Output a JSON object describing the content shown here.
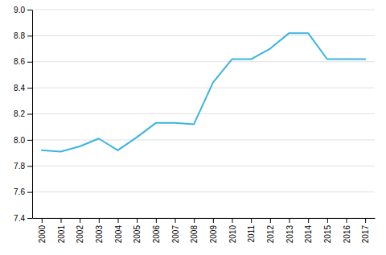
{
  "chart_data": {
    "type": "line",
    "x": [
      2000,
      2001,
      2002,
      2003,
      2004,
      2005,
      2006,
      2007,
      2008,
      2009,
      2010,
      2011,
      2012,
      2013,
      2014,
      2015,
      2016,
      2017
    ],
    "values": [
      7.92,
      7.91,
      7.95,
      8.01,
      7.92,
      8.02,
      8.13,
      8.13,
      8.12,
      8.44,
      8.62,
      8.62,
      8.7,
      8.82,
      8.82,
      8.62,
      8.62,
      8.62
    ],
    "color": "#3ab4e0",
    "xlim": [
      1999.5,
      2017.5
    ],
    "xticks": [
      2000,
      2001,
      2002,
      2003,
      2004,
      2005,
      2006,
      2007,
      2008,
      2009,
      2010,
      2011,
      2012,
      2013,
      2014,
      2015,
      2016,
      2017
    ],
    "ylim": [
      7.4,
      9.0
    ],
    "yticks": [
      7.4,
      7.6,
      7.8,
      {
        "value": 8.0,
        "label": "8.0"
      },
      8.2,
      8.4,
      8.6,
      8.8,
      {
        "value": 9.0,
        "label": "9.0"
      }
    ],
    "grid": true
  }
}
